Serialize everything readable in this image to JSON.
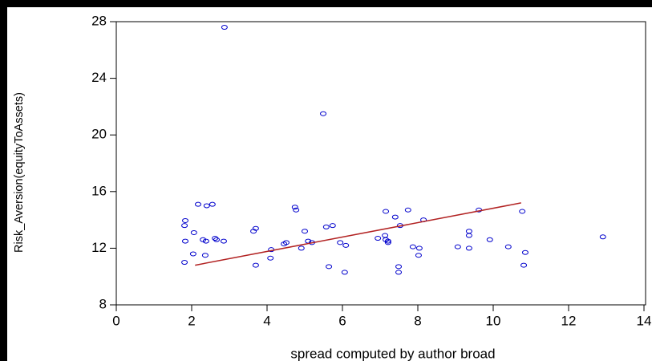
{
  "chart_data": {
    "type": "scatter",
    "x_label": "spread  computed by author  broad",
    "y_label": "Risk_Aversion(equityToAssets)",
    "xlim": [
      0,
      14
    ],
    "ylim": [
      8,
      28
    ],
    "xticks": [
      0,
      2,
      4,
      6,
      8,
      10,
      12,
      14
    ],
    "yticks": [
      8,
      12,
      16,
      20,
      24,
      28
    ],
    "grid": false,
    "series": [
      {
        "name": "observations",
        "color": "#0000cc",
        "x": [
          2.87,
          5.49,
          2.17,
          2.55,
          2.4,
          1.83,
          1.81,
          2.06,
          1.83,
          2.3,
          2.38,
          2.62,
          2.66,
          2.85,
          2.04,
          2.36,
          1.81,
          3.7,
          3.64,
          3.7,
          4.11,
          4.09,
          4.74,
          4.77,
          4.45,
          4.51,
          5.0,
          5.09,
          5.19,
          4.91,
          5.57,
          5.74,
          5.94,
          6.09,
          5.64,
          6.06,
          7.15,
          7.13,
          7.21,
          7.21,
          6.94,
          7.15,
          7.4,
          7.53,
          7.74,
          7.87,
          8.04,
          8.02,
          8.15,
          7.49,
          7.49,
          9.06,
          9.36,
          9.36,
          9.36,
          9.62,
          9.91,
          10.77,
          10.4,
          10.85,
          10.81,
          12.91
        ],
        "values": [
          27.6,
          21.5,
          15.1,
          15.1,
          15.0,
          13.95,
          13.6,
          13.1,
          12.5,
          12.6,
          12.5,
          12.7,
          12.6,
          12.5,
          11.6,
          11.5,
          11.0,
          13.4,
          13.2,
          10.8,
          11.9,
          11.3,
          14.9,
          14.7,
          12.3,
          12.4,
          13.2,
          12.5,
          12.4,
          12.0,
          13.5,
          13.6,
          12.4,
          12.2,
          10.7,
          10.3,
          12.6,
          12.9,
          12.5,
          12.4,
          12.7,
          14.6,
          14.2,
          13.6,
          14.7,
          12.1,
          12.0,
          11.5,
          14.0,
          10.7,
          10.3,
          12.1,
          13.2,
          12.9,
          12.0,
          14.7,
          12.6,
          14.6,
          12.1,
          11.7,
          10.8,
          12.8
        ]
      },
      {
        "name": "fit",
        "color": "#b22222",
        "line": true,
        "x": [
          2.09,
          10.74
        ],
        "values": [
          10.8,
          15.2
        ]
      }
    ]
  }
}
